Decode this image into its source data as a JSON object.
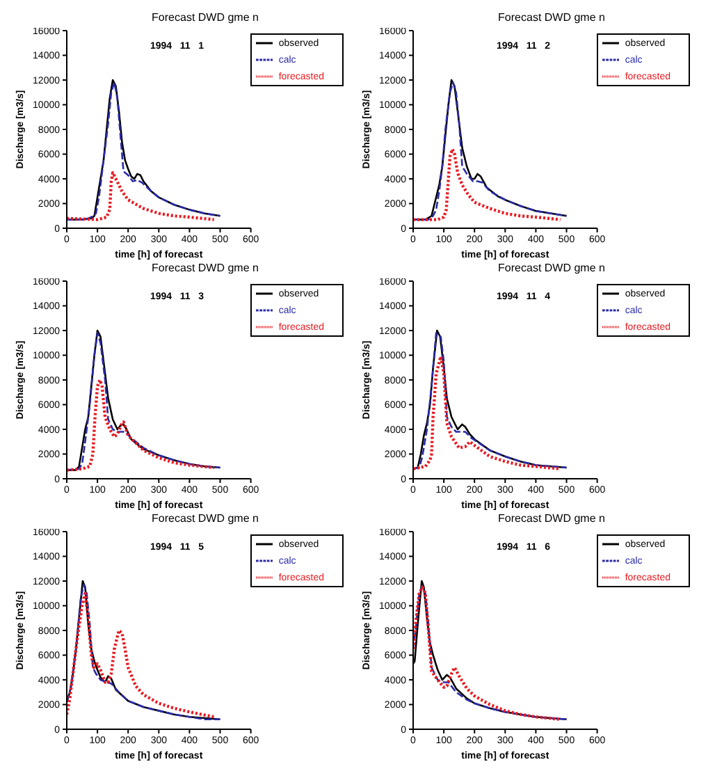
{
  "chart_data": [
    {
      "type": "line",
      "title": "Forecast DWD gme n",
      "annotations": [
        "1994   11   1"
      ],
      "xlabel": "time [h] of forecast",
      "ylabel": "Discharge [m3/s]",
      "xlim": [
        0,
        600
      ],
      "xticks": [
        0,
        100,
        200,
        300,
        400,
        500,
        600
      ],
      "ylim": [
        0,
        16000
      ],
      "yticks": [
        0,
        2000,
        4000,
        6000,
        8000,
        10000,
        12000,
        14000,
        16000
      ],
      "grid": false,
      "legend": "top right",
      "series": [
        {
          "name": "observed",
          "color": "#000000",
          "line_style": "solid",
          "x": [
            0,
            50,
            80,
            90,
            100,
            110,
            120,
            130,
            140,
            150,
            160,
            170,
            180,
            190,
            200,
            210,
            220,
            230,
            240,
            250,
            275,
            300,
            350,
            400,
            450,
            500
          ],
          "values": [
            700,
            700,
            800,
            1000,
            2500,
            4000,
            5500,
            8000,
            10500,
            12000,
            11500,
            9500,
            7000,
            5500,
            4800,
            4200,
            4000,
            4400,
            4300,
            3800,
            3000,
            2500,
            1900,
            1500,
            1200,
            1000
          ]
        },
        {
          "name": "calc",
          "color": "#2a2aa8",
          "line_style": "dashed",
          "x": [
            0,
            60,
            80,
            95,
            105,
            115,
            125,
            135,
            145,
            155,
            165,
            175,
            185,
            200,
            215,
            230,
            245,
            275,
            300,
            350,
            400,
            450,
            500
          ],
          "values": [
            700,
            700,
            900,
            1200,
            2500,
            4500,
            6500,
            8500,
            11000,
            11800,
            10500,
            7500,
            4600,
            4300,
            3800,
            3900,
            3700,
            3000,
            2500,
            1900,
            1500,
            1200,
            1000
          ]
        },
        {
          "name": "forecasted",
          "color": "#e8191f",
          "line_style": "dotted",
          "x": [
            0,
            100,
            130,
            140,
            145,
            150,
            160,
            180,
            200,
            250,
            300,
            350,
            400,
            480
          ],
          "values": [
            800,
            700,
            900,
            1500,
            3800,
            4500,
            4000,
            3000,
            2300,
            1600,
            1200,
            1000,
            900,
            700
          ]
        }
      ]
    },
    {
      "type": "line",
      "title": "Forecast DWD gme n",
      "annotations": [
        "1994   11   2"
      ],
      "xlabel": "time [h] of forecast",
      "ylabel": "Discharge [m3/s]",
      "xlim": [
        0,
        600
      ],
      "xticks": [
        0,
        100,
        200,
        300,
        400,
        500,
        600
      ],
      "ylim": [
        0,
        16000
      ],
      "yticks": [
        0,
        2000,
        4000,
        6000,
        8000,
        10000,
        12000,
        14000,
        16000
      ],
      "grid": false,
      "legend": "top right",
      "series": [
        {
          "name": "observed",
          "color": "#000000",
          "line_style": "solid",
          "x": [
            0,
            40,
            60,
            70,
            85,
            95,
            105,
            115,
            125,
            135,
            145,
            160,
            175,
            190,
            200,
            210,
            220,
            240,
            275,
            300,
            350,
            400,
            450,
            500
          ],
          "values": [
            700,
            700,
            1000,
            2000,
            3500,
            5000,
            7500,
            10000,
            12000,
            11500,
            9500,
            6500,
            5000,
            4000,
            4000,
            4400,
            4200,
            3300,
            2600,
            2300,
            1800,
            1400,
            1200,
            1000
          ]
        },
        {
          "name": "calc",
          "color": "#2a2aa8",
          "line_style": "dashed",
          "x": [
            0,
            50,
            65,
            75,
            85,
            95,
            105,
            120,
            130,
            140,
            150,
            160,
            175,
            195,
            210,
            225,
            250,
            300,
            350,
            400,
            450,
            500
          ],
          "values": [
            700,
            700,
            1000,
            1500,
            3000,
            5000,
            8000,
            11000,
            11800,
            11000,
            8500,
            5000,
            4400,
            3800,
            3800,
            3700,
            3000,
            2300,
            1800,
            1400,
            1200,
            1000
          ]
        },
        {
          "name": "forecasted",
          "color": "#e8191f",
          "line_style": "dotted",
          "x": [
            0,
            80,
            100,
            108,
            115,
            120,
            128,
            135,
            145,
            160,
            180,
            200,
            250,
            300,
            350,
            400,
            480
          ],
          "values": [
            700,
            700,
            900,
            1500,
            4000,
            5800,
            6400,
            6000,
            4500,
            3500,
            2700,
            2100,
            1600,
            1200,
            1000,
            900,
            700
          ]
        }
      ]
    },
    {
      "type": "line",
      "title": "Forecast DWD gme n",
      "annotations": [
        "1994   11   3"
      ],
      "xlabel": "time [h] of forecast",
      "ylabel": "Discharge [m3/s]",
      "xlim": [
        0,
        600
      ],
      "xticks": [
        0,
        100,
        200,
        300,
        400,
        500,
        600
      ],
      "ylim": [
        0,
        16000
      ],
      "yticks": [
        0,
        2000,
        4000,
        6000,
        8000,
        10000,
        12000,
        14000,
        16000
      ],
      "grid": false,
      "legend": "top right",
      "series": [
        {
          "name": "observed",
          "color": "#000000",
          "line_style": "solid",
          "x": [
            0,
            30,
            40,
            50,
            60,
            70,
            80,
            90,
            100,
            110,
            120,
            135,
            150,
            165,
            175,
            185,
            195,
            210,
            250,
            300,
            350,
            400,
            450,
            500
          ],
          "values": [
            700,
            700,
            1000,
            2500,
            4000,
            5000,
            7500,
            10000,
            12000,
            11500,
            9500,
            6500,
            4800,
            4000,
            4300,
            4400,
            4000,
            3200,
            2400,
            1900,
            1500,
            1200,
            1000,
            900
          ]
        },
        {
          "name": "calc",
          "color": "#2a2aa8",
          "line_style": "dashed",
          "x": [
            0,
            40,
            50,
            60,
            75,
            90,
            100,
            110,
            125,
            135,
            150,
            165,
            190,
            210,
            250,
            300,
            350,
            400,
            450,
            500
          ],
          "values": [
            700,
            800,
            1200,
            3000,
            6000,
            10000,
            11800,
            11000,
            8000,
            4800,
            4000,
            3800,
            3800,
            3300,
            2500,
            1900,
            1500,
            1200,
            1000,
            900
          ]
        },
        {
          "name": "forecasted",
          "color": "#e8191f",
          "line_style": "dotted",
          "x": [
            0,
            50,
            75,
            85,
            92,
            100,
            108,
            115,
            125,
            140,
            155,
            165,
            180,
            185,
            200,
            250,
            300,
            350,
            400,
            480
          ],
          "values": [
            700,
            800,
            1000,
            2000,
            5000,
            7500,
            8000,
            7500,
            5000,
            4000,
            3400,
            3600,
            4500,
            4600,
            3500,
            2300,
            1700,
            1300,
            1100,
            900
          ]
        }
      ]
    },
    {
      "type": "line",
      "title": "Forecast DWD gme n",
      "annotations": [
        "1994   11   4"
      ],
      "xlabel": "time [h] of forecast",
      "ylabel": "Discharge [m3/s]",
      "xlim": [
        0,
        600
      ],
      "xticks": [
        0,
        100,
        200,
        300,
        400,
        500,
        600
      ],
      "ylim": [
        0,
        16000
      ],
      "yticks": [
        0,
        2000,
        4000,
        6000,
        8000,
        10000,
        12000,
        14000,
        16000
      ],
      "grid": false,
      "legend": "top right",
      "series": [
        {
          "name": "observed",
          "color": "#000000",
          "line_style": "solid",
          "x": [
            0,
            15,
            25,
            35,
            45,
            55,
            65,
            78,
            88,
            100,
            110,
            125,
            145,
            160,
            170,
            185,
            200,
            250,
            300,
            350,
            400,
            450,
            500
          ],
          "values": [
            800,
            900,
            2000,
            3500,
            4500,
            6000,
            9000,
            12000,
            11500,
            9000,
            6500,
            5000,
            4000,
            4400,
            4200,
            3600,
            3200,
            2300,
            1800,
            1400,
            1100,
            1000,
            900
          ]
        },
        {
          "name": "calc",
          "color": "#2a2aa8",
          "line_style": "dashed",
          "x": [
            0,
            20,
            30,
            45,
            60,
            75,
            90,
            100,
            110,
            125,
            140,
            170,
            190,
            250,
            300,
            350,
            400,
            450,
            500
          ],
          "values": [
            800,
            900,
            1800,
            4000,
            7500,
            11800,
            11500,
            9500,
            5000,
            4200,
            3800,
            3800,
            3300,
            2300,
            1800,
            1400,
            1100,
            1000,
            900
          ]
        },
        {
          "name": "forecasted",
          "color": "#e8191f",
          "line_style": "dotted",
          "x": [
            0,
            40,
            55,
            60,
            65,
            75,
            90,
            100,
            110,
            125,
            150,
            170,
            185,
            200,
            250,
            300,
            350,
            400,
            480
          ],
          "values": [
            800,
            1000,
            1500,
            2000,
            5000,
            8500,
            9900,
            8500,
            4500,
            3400,
            2500,
            2600,
            3000,
            2700,
            1800,
            1400,
            1100,
            1000,
            800
          ]
        }
      ]
    },
    {
      "type": "line",
      "title": "Forecast DWD gme n",
      "annotations": [
        "1994   11   5"
      ],
      "xlabel": "time [h] of forecast",
      "ylabel": "Discharge [m3/s]",
      "xlim": [
        0,
        600
      ],
      "xticks": [
        0,
        100,
        200,
        300,
        400,
        500,
        600
      ],
      "ylim": [
        0,
        16000
      ],
      "yticks": [
        0,
        2000,
        4000,
        6000,
        8000,
        10000,
        12000,
        14000,
        16000
      ],
      "grid": false,
      "legend": "top right",
      "series": [
        {
          "name": "observed",
          "color": "#000000",
          "line_style": "solid",
          "x": [
            0,
            10,
            20,
            30,
            40,
            52,
            60,
            70,
            80,
            90,
            100,
            110,
            125,
            135,
            145,
            160,
            200,
            250,
            300,
            350,
            400,
            450,
            500
          ],
          "values": [
            2200,
            3000,
            4500,
            6500,
            9000,
            12000,
            11500,
            8500,
            6500,
            5500,
            4800,
            4200,
            3800,
            4300,
            4100,
            3200,
            2300,
            1800,
            1500,
            1200,
            1000,
            900,
            800
          ]
        },
        {
          "name": "calc",
          "color": "#2a2aa8",
          "line_style": "dashed",
          "x": [
            0,
            15,
            30,
            45,
            55,
            65,
            75,
            85,
            95,
            110,
            130,
            145,
            170,
            200,
            250,
            300,
            350,
            400,
            450,
            500
          ],
          "values": [
            2200,
            3500,
            6500,
            10500,
            11700,
            11000,
            8500,
            5000,
            4500,
            4000,
            3800,
            3700,
            3000,
            2300,
            1800,
            1500,
            1200,
            1000,
            800,
            800
          ]
        },
        {
          "name": "forecasted",
          "color": "#e8191f",
          "line_style": "dotted",
          "x": [
            0,
            10,
            20,
            35,
            50,
            60,
            70,
            80,
            88,
            100,
            110,
            125,
            135,
            145,
            155,
            170,
            180,
            190,
            200,
            225,
            250,
            300,
            350,
            400,
            480
          ],
          "values": [
            1200,
            2500,
            4500,
            7500,
            10000,
            11000,
            9000,
            6000,
            5000,
            5300,
            4800,
            3800,
            3800,
            4500,
            6500,
            8000,
            7800,
            6500,
            5000,
            3500,
            2800,
            2100,
            1700,
            1400,
            1000
          ]
        }
      ]
    },
    {
      "type": "line",
      "title": "Forecast DWD gme n",
      "annotations": [
        "1994   11   6"
      ],
      "xlabel": "time [h] of forecast",
      "ylabel": "Discharge [m3/s]",
      "xlim": [
        0,
        600
      ],
      "xticks": [
        0,
        100,
        200,
        300,
        400,
        500,
        600
      ],
      "ylim": [
        0,
        16000
      ],
      "yticks": [
        0,
        2000,
        4000,
        6000,
        8000,
        10000,
        12000,
        14000,
        16000
      ],
      "grid": false,
      "legend": "top right",
      "series": [
        {
          "name": "observed",
          "color": "#000000",
          "line_style": "solid",
          "x": [
            0,
            5,
            15,
            28,
            35,
            45,
            55,
            65,
            80,
            95,
            110,
            120,
            140,
            175,
            200,
            250,
            300,
            350,
            400,
            450,
            500
          ],
          "values": [
            5300,
            5500,
            8500,
            12000,
            11500,
            9000,
            7000,
            6000,
            4800,
            4000,
            4400,
            4200,
            3300,
            2500,
            2100,
            1700,
            1400,
            1200,
            1000,
            900,
            800
          ]
        },
        {
          "name": "calc",
          "color": "#2a2aa8",
          "line_style": "dashed",
          "x": [
            0,
            10,
            20,
            30,
            40,
            50,
            60,
            80,
            100,
            115,
            140,
            175,
            200,
            250,
            300,
            350,
            400,
            450,
            500
          ],
          "values": [
            6500,
            8500,
            11000,
            11600,
            11000,
            8500,
            5000,
            4000,
            3800,
            3800,
            3000,
            2400,
            2100,
            1700,
            1400,
            1200,
            1000,
            900,
            800
          ]
        },
        {
          "name": "forecasted",
          "color": "#e8191f",
          "line_style": "dotted",
          "x": [
            0,
            10,
            20,
            30,
            40,
            50,
            60,
            80,
            100,
            110,
            125,
            135,
            150,
            175,
            200,
            250,
            300,
            350,
            400,
            480
          ],
          "values": [
            6500,
            9000,
            11000,
            11500,
            11000,
            8000,
            4700,
            4000,
            3400,
            3500,
            4500,
            5000,
            4300,
            3300,
            2700,
            2000,
            1500,
            1200,
            1000,
            800
          ]
        }
      ]
    }
  ]
}
